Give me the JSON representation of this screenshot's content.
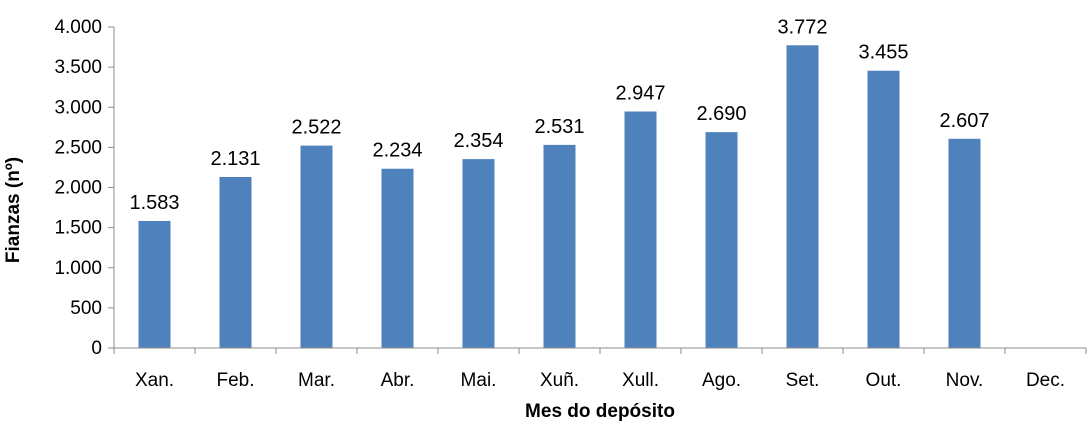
{
  "chart_data": {
    "type": "bar",
    "title": "",
    "xlabel": "Mes do depósito",
    "ylabel": "Fianzas (nº)",
    "categories": [
      "Xan.",
      "Feb.",
      "Mar.",
      "Abr.",
      "Mai.",
      "Xuñ.",
      "Xull.",
      "Ago.",
      "Set.",
      "Out.",
      "Nov.",
      "Dec."
    ],
    "values": [
      1583,
      2131,
      2522,
      2234,
      2354,
      2531,
      2947,
      2690,
      3772,
      3455,
      2607,
      null
    ],
    "value_labels": [
      "1.583",
      "2.131",
      "2.522",
      "2.234",
      "2.354",
      "2.531",
      "2.947",
      "2.690",
      "3.772",
      "3.455",
      "2.607",
      ""
    ],
    "ylim": [
      0,
      4000
    ],
    "yticks": [
      0,
      500,
      1000,
      1500,
      2000,
      2500,
      3000,
      3500,
      4000
    ],
    "ytick_labels": [
      "0",
      "500",
      "1.000",
      "1.500",
      "2.000",
      "2.500",
      "3.000",
      "3.500",
      "4.000"
    ],
    "grid": false,
    "legend": "none",
    "bar_color": "#4f81bd",
    "axis_color": "#8c8c8c"
  }
}
